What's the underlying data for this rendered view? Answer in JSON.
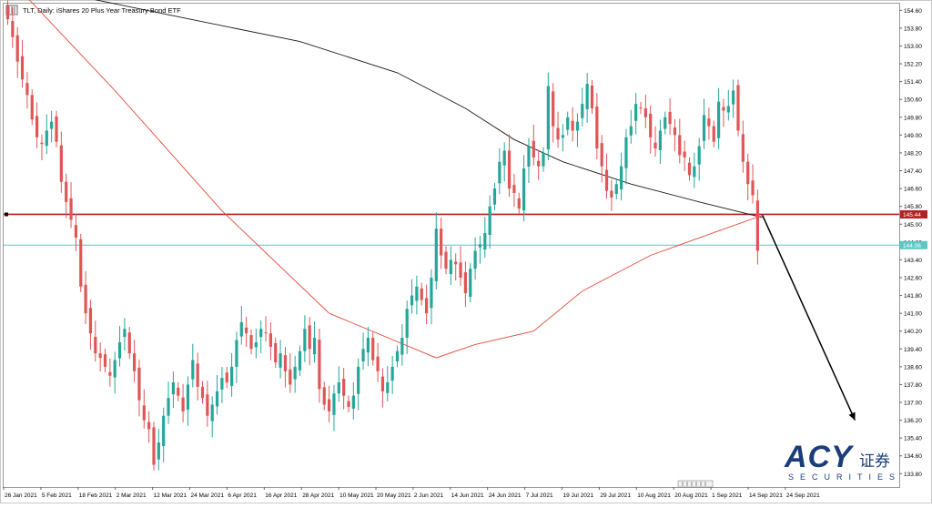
{
  "header": {
    "title": "TLT, Daily:  iShares 20 Plus Year Treasury Bond ETF"
  },
  "watermark": {
    "brand": "ACY",
    "cn": "证券",
    "sub": "SECURITIES"
  },
  "colors": {
    "bull": "#26a69a",
    "bear": "#e05555",
    "ma_fast": "#e04a3a",
    "ma_slow": "#1a1a1a",
    "resistance_line": "#b22222",
    "current_line": "#5fc6c6",
    "arrow": "#000000",
    "brand_blue": "#1b3d7a"
  },
  "chart_data": {
    "type": "candlestick",
    "title": "TLT, Daily:  iShares 20 Plus Year Treasury Bond ETF",
    "ylim": [
      133.2,
      154.9
    ],
    "y_ticks": [
      "154.60",
      "153.80",
      "153.00",
      "152.20",
      "151.40",
      "150.60",
      "149.80",
      "149.00",
      "148.20",
      "147.40",
      "146.60",
      "145.80",
      "145.00",
      "144.20",
      "143.40",
      "142.60",
      "141.80",
      "141.00",
      "140.20",
      "139.40",
      "138.60",
      "137.80",
      "137.00",
      "136.20",
      "135.40",
      "134.60",
      "133.80"
    ],
    "x_ticks": [
      "26 Jan 2021",
      "5 Feb 2021",
      "18 Feb 2021",
      "2 Mar 2021",
      "12 Mar 2021",
      "24 Mar 2021",
      "6 Apr 2021",
      "16 Apr 2021",
      "28 Apr 2021",
      "10 May 2021",
      "20 May 2021",
      "2 Jun 2021",
      "14 Jun 2021",
      "24 Jun 2021",
      "7 Jul 2021",
      "19 Jul 2021",
      "29 Jul 2021",
      "10 Aug 2021",
      "20 Aug 2021",
      "1 Sep 2021",
      "14 Sep 2021",
      "24 Sep 2021"
    ],
    "horizontal_lines": [
      {
        "value": 145.44,
        "label": "145.44"
      },
      {
        "value": 144.06,
        "label": "144.06"
      }
    ],
    "close": [
      154.2,
      153.4,
      152.3,
      151.5,
      150.8,
      149.7,
      148.9,
      148.6,
      149.2,
      149.6,
      148.7,
      146.9,
      146.0,
      145.2,
      144.4,
      142.2,
      141.0,
      140.1,
      139.2,
      139.0,
      138.6,
      138.2,
      138.9,
      139.7,
      140.3,
      139.2,
      138.4,
      137.1,
      136.2,
      135.8,
      134.2,
      135.2,
      136.4,
      137.2,
      137.9,
      137.3,
      136.6,
      137.8,
      138.9,
      137.7,
      137.2,
      136.4,
      136.9,
      137.5,
      138.1,
      137.9,
      138.6,
      139.8,
      140.6,
      140.1,
      139.4,
      139.7,
      140.3,
      140.1,
      139.5,
      138.8,
      139.2,
      138.4,
      137.8,
      138.6,
      139.3,
      140.3,
      139.4,
      139.9,
      137.6,
      136.9,
      136.6,
      137.4,
      137.9,
      137.3,
      136.8,
      137.3,
      138.6,
      139.4,
      139.9,
      138.9,
      138.4,
      137.5,
      137.9,
      138.6,
      139.3,
      139.9,
      141.2,
      141.8,
      142.2,
      141.6,
      141.0,
      142.6,
      144.8,
      143.6,
      143.0,
      143.4,
      143.2,
      142.6,
      141.9,
      143.0,
      143.8,
      144.1,
      144.6,
      145.8,
      146.6,
      147.8,
      148.3,
      146.6,
      146.4,
      145.7,
      147.5,
      148.5,
      148.0,
      147.6,
      148.2,
      151.2,
      149.4,
      148.8,
      149.0,
      149.8,
      149.2,
      149.6,
      150.4,
      151.3,
      150.2,
      148.4,
      147.6,
      146.5,
      146.2,
      146.8,
      147.6,
      148.9,
      149.4,
      150.4,
      150.2,
      149.8,
      148.9,
      148.4,
      149.2,
      149.8,
      149.5,
      149.0,
      148.1,
      148.0,
      147.2,
      147.6,
      148.5,
      149.9,
      149.4,
      148.7,
      150.5,
      150.1,
      150.3,
      151.0,
      149.2,
      147.8,
      146.8,
      146.3,
      143.8
    ],
    "ma_fast_line": [
      [
        0,
        156.1
      ],
      [
        22,
        151.0
      ],
      [
        44,
        145.6
      ],
      [
        66,
        141.0
      ],
      [
        88,
        139.0
      ],
      [
        96,
        139.6
      ],
      [
        108,
        140.2
      ],
      [
        118,
        142.0
      ],
      [
        132,
        143.6
      ],
      [
        146,
        144.7
      ],
      [
        155,
        145.4
      ]
    ],
    "ma_slow_line": [
      [
        0,
        156.3
      ],
      [
        13,
        155.3
      ],
      [
        33,
        154.4
      ],
      [
        60,
        153.2
      ],
      [
        80,
        151.8
      ],
      [
        94,
        150.2
      ],
      [
        104,
        148.8
      ],
      [
        114,
        147.8
      ],
      [
        128,
        146.8
      ],
      [
        142,
        146.0
      ],
      [
        155,
        145.3
      ]
    ],
    "projection_arrow": [
      [
        155,
        145.4
      ],
      [
        174,
        136.2
      ]
    ]
  }
}
